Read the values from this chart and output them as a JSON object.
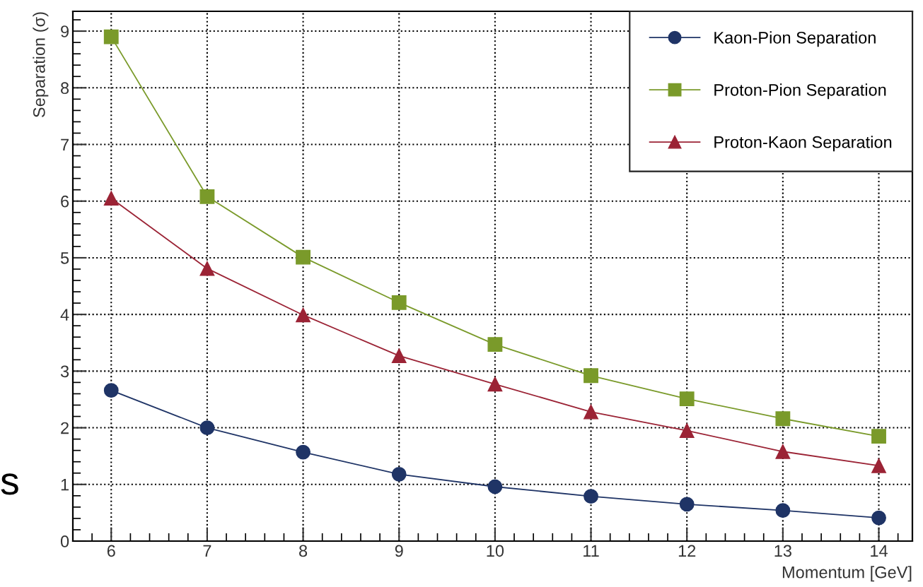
{
  "chart_data": {
    "type": "line",
    "xlabel": "Momentum [GeV]",
    "ylabel": "Separation (σ)",
    "x": [
      6,
      7,
      8,
      9,
      10,
      11,
      12,
      13,
      14
    ],
    "series": [
      {
        "name": "Kaon-Pion Separation",
        "color": "#1f3466",
        "marker": "circle",
        "values": [
          2.66,
          2.0,
          1.57,
          1.18,
          0.96,
          0.79,
          0.65,
          0.54,
          0.41
        ]
      },
      {
        "name": "Proton-Pion Separation",
        "color": "#7a9a2a",
        "marker": "square",
        "values": [
          8.9,
          6.08,
          5.01,
          4.21,
          3.47,
          2.92,
          2.51,
          2.16,
          1.85
        ]
      },
      {
        "name": "Proton-Kaon Separation",
        "color": "#9b2335",
        "marker": "triangle",
        "values": [
          6.05,
          4.81,
          3.99,
          3.27,
          2.77,
          2.28,
          1.95,
          1.58,
          1.33
        ]
      }
    ],
    "xlim": [
      5.6,
      14.35
    ],
    "xticks": [
      6,
      7,
      8,
      9,
      10,
      11,
      12,
      13,
      14
    ],
    "ylim": [
      0,
      9.35
    ],
    "yticks": [
      0,
      1,
      2,
      3,
      4,
      5,
      6,
      7,
      8,
      9
    ],
    "grid": true,
    "legend": "top right",
    "line_style": "solid",
    "annotations": [
      "s"
    ]
  }
}
